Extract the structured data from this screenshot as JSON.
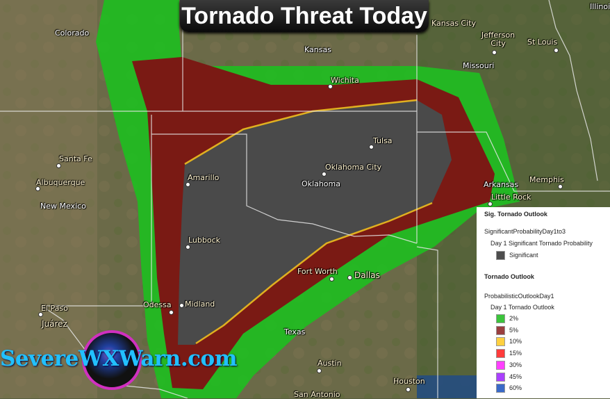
{
  "title": "Tornado Threat Today",
  "labels": {
    "states": [
      "Colorado",
      "Kansas",
      "Missouri",
      "Oklahoma",
      "New Mexico",
      "Texas",
      "Arkansas",
      "Illinois"
    ],
    "cities": [
      "Kansas City",
      "Jefferson City",
      "St Louis",
      "Wichita",
      "Tulsa",
      "Oklahoma City",
      "Santa Fe",
      "Albuquerque",
      "Amarillo",
      "Lubbock",
      "Odessa",
      "Midland",
      "Fort Worth",
      "Dallas",
      "El Paso",
      "Juárez",
      "Austin",
      "Houston",
      "San Antonio",
      "Memphis",
      "Little Rock"
    ]
  },
  "legend": {
    "sig_heading": "Sig. Tornado Outlook",
    "sig_layer": "SignificantProbabilityDay1to3",
    "sig_sub": "Day 1 Significant Tornado Probability",
    "sig_items": [
      {
        "label": "Significant",
        "color": "#4d4d4d"
      }
    ],
    "heading": "Tornado Outlook",
    "layer": "ProbabilisticOutlookDay1",
    "sub": "Day 1 Tornado Outlook",
    "items": [
      {
        "label": "2%",
        "color": "#3cc43c"
      },
      {
        "label": "5%",
        "color": "#9a3f3f"
      },
      {
        "label": "10%",
        "color": "#ffd040"
      },
      {
        "label": "15%",
        "color": "#ff3c3c"
      },
      {
        "label": "30%",
        "color": "#ff40ff"
      },
      {
        "label": "45%",
        "color": "#aa40ff"
      },
      {
        "label": "60%",
        "color": "#3a6ac8"
      }
    ]
  },
  "outlook_colors": {
    "2%": "#22bb22",
    "5%": "#7a1a14",
    "10%": "#e0b020",
    "significant": "#4a4a4a"
  },
  "brand": "SevereWXWarn.com"
}
